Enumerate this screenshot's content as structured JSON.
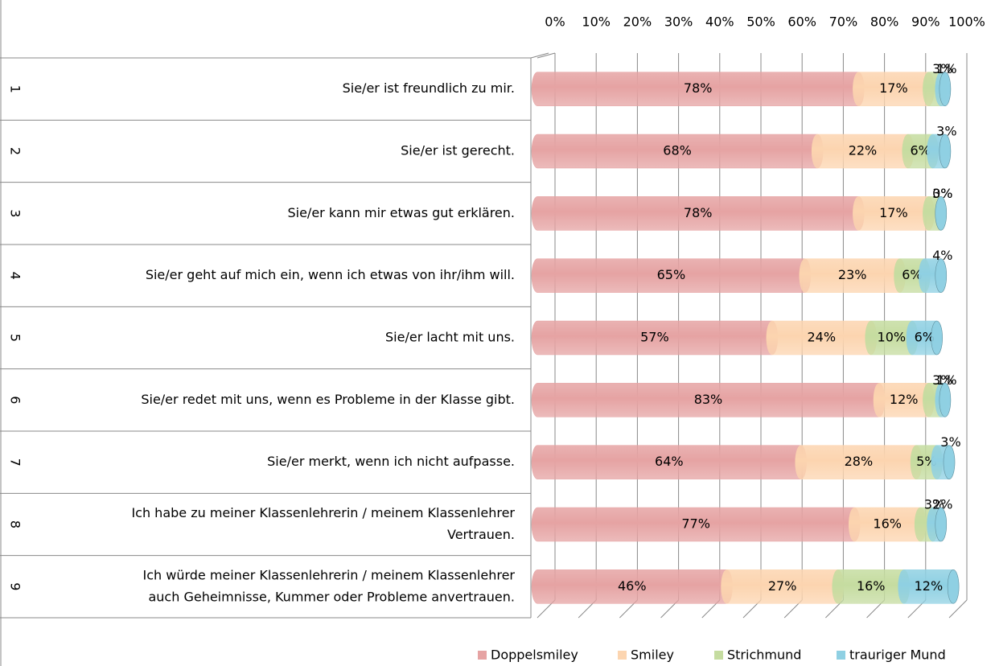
{
  "chart_data": {
    "type": "stacked_bar_horizontal_percent",
    "category_numbers": [
      "1",
      "2",
      "3",
      "4",
      "5",
      "6",
      "7",
      "8",
      "9"
    ],
    "categories": [
      [
        "Sie/er ist freundlich zu mir."
      ],
      [
        "Sie/er ist gerecht."
      ],
      [
        "Sie/er kann mir etwas gut erklären."
      ],
      [
        "Sie/er geht auf mich ein, wenn ich etwas von ihr/ihm will."
      ],
      [
        "Sie/er lacht mit uns."
      ],
      [
        "Sie/er redet mit uns, wenn es Probleme in der Klasse gibt."
      ],
      [
        "Sie/er merkt, wenn ich nicht aufpasse."
      ],
      [
        "Ich habe zu meiner Klassenlehrerin / meinem Klassenlehrer",
        "Vertrauen."
      ],
      [
        "Ich würde meiner Klassenlehrerin / meinem Klassenlehrer",
        "auch Geheimnisse, Kummer oder Probleme anvertrauen."
      ]
    ],
    "series": [
      {
        "name": "Doppelsmiley",
        "color": "#e6a3a3",
        "values": [
          78,
          68,
          78,
          65,
          57,
          83,
          64,
          77,
          46
        ],
        "value_labels": [
          "78%",
          "68%",
          "78%",
          "65%",
          "57%",
          "83%",
          "64%",
          "77%",
          "46%"
        ]
      },
      {
        "name": "Smiley",
        "color": "#fcd5b0",
        "values": [
          17,
          22,
          17,
          23,
          24,
          12,
          28,
          16,
          27
        ],
        "value_labels": [
          "17%",
          "22%",
          "17%",
          "23%",
          "24%",
          "12%",
          "28%",
          "16%",
          "27%"
        ]
      },
      {
        "name": "Strichmund",
        "color": "#c5dca0",
        "values": [
          3,
          6,
          3,
          6,
          10,
          3,
          5,
          3,
          16
        ],
        "value_labels": [
          "3%",
          "6%",
          "3%",
          "6%",
          "10%",
          "3%",
          "5%",
          "3%",
          "16%"
        ]
      },
      {
        "name": "trauriger Mund",
        "color": "#8fd0e3",
        "values": [
          1,
          3,
          0,
          4,
          6,
          1,
          3,
          2,
          12
        ],
        "value_labels": [
          "1%",
          "3%",
          "0%",
          "4%",
          "6%",
          "1%",
          "3%",
          "2%",
          "12%"
        ]
      }
    ],
    "xlim": [
      0,
      100
    ],
    "xticks": [
      {
        "value": 0,
        "label": "0%"
      },
      {
        "value": 10,
        "label": "10%"
      },
      {
        "value": 20,
        "label": "20%"
      },
      {
        "value": 30,
        "label": "30%"
      },
      {
        "value": 40,
        "label": "40%"
      },
      {
        "value": 50,
        "label": "50%"
      },
      {
        "value": 60,
        "label": "60%"
      },
      {
        "value": 70,
        "label": "70%"
      },
      {
        "value": 80,
        "label": "80%"
      },
      {
        "value": 90,
        "label": "90%"
      },
      {
        "value": 100,
        "label": "100%"
      }
    ],
    "grid": true,
    "legend": "bottom"
  }
}
